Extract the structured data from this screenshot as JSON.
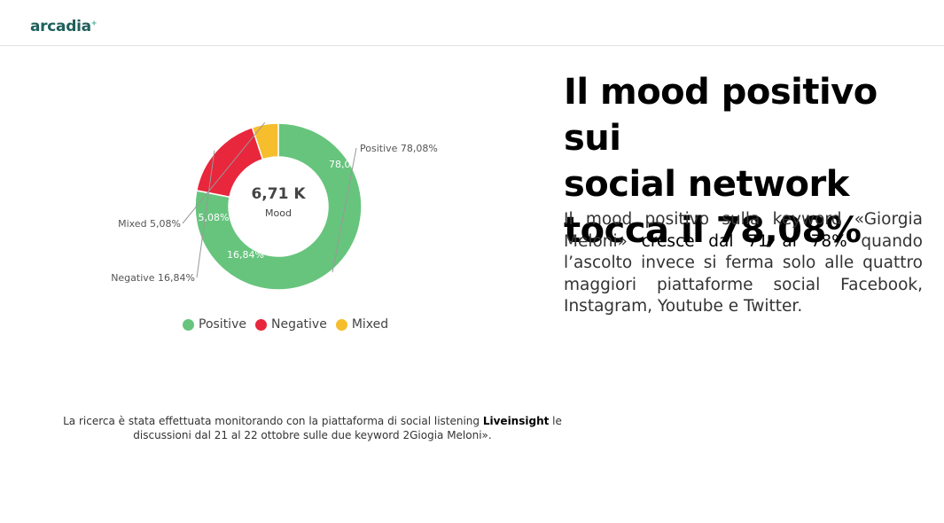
{
  "brand": {
    "logo_text": "arcadia",
    "logo_mark": "+"
  },
  "headline": {
    "line1": "Il mood positivo sui",
    "line2": "social network",
    "line3": "tocca il 78,08%"
  },
  "body": {
    "part1": "Il mood positivo sulla keyword «Giorgia Meloni» ",
    "emphasis": "cresce dal 71 al 78%",
    "part2": " quando l’ascolto invece si ferma solo alle quattro maggiori piattaforme social Facebook, Instagram, Youtube e Twitter."
  },
  "chart_data": {
    "type": "pie",
    "donut": true,
    "center_value": "6,71 K",
    "center_label": "Mood",
    "slices": [
      {
        "name": "Positive",
        "value": 78.08,
        "label": "78,08%",
        "callout": "Positive 78,08%",
        "color": "#67c47d"
      },
      {
        "name": "Negative",
        "value": 16.84,
        "label": "16,84%",
        "callout": "Negative 16,84%",
        "color": "#e8273c"
      },
      {
        "name": "Mixed",
        "value": 5.08,
        "label": "5,08%",
        "callout": "Mixed 5,08%",
        "color": "#f6be2c"
      }
    ],
    "legend_position": "bottom"
  },
  "footnote": {
    "part1": "La ricerca è stata effettuata monitorando con la piattaforma di social listening ",
    "strong": "Liveinsight",
    "part2": " le discussioni dal 21 al 22 ottobre sulle due keyword 2Giogia Meloni»."
  }
}
